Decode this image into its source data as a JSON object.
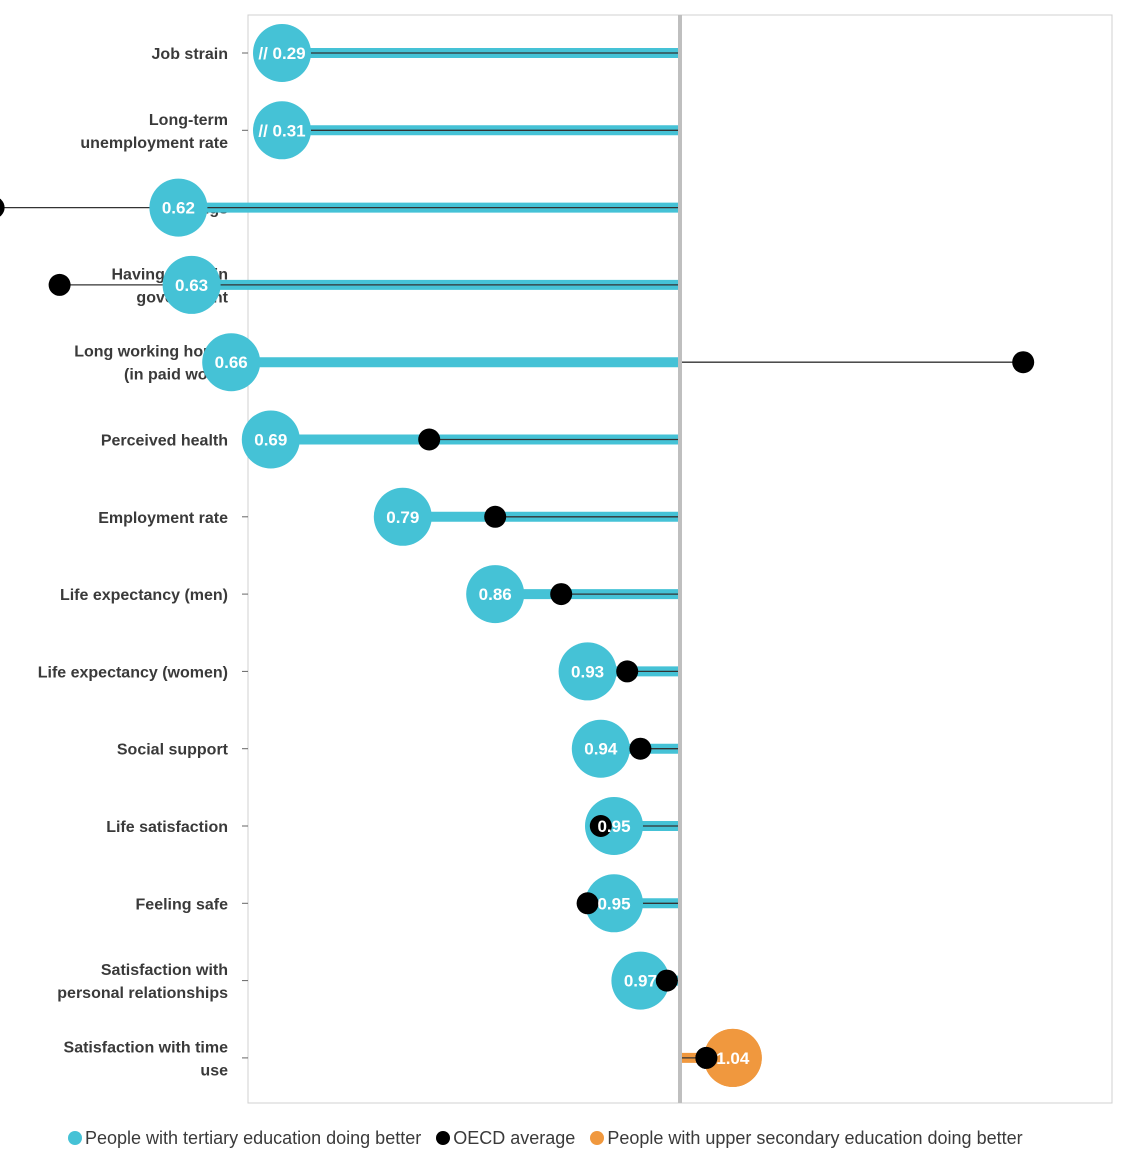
{
  "chart_data": {
    "type": "dot-bar",
    "reference_value": 1.0,
    "xlim": [
      0.25,
      1.25
    ],
    "colors": {
      "tertiary": "#45C2D6",
      "upper_secondary": "#F0983E",
      "oecd": "#000000",
      "reference_line": "#BFBFBF",
      "axis_frame": "#D0D0D0"
    },
    "categories": [
      "Job strain",
      "Long-term unemployment rate",
      "Earnings",
      "Having a say in government",
      "Long working hours (in paid work)",
      "Perceived health",
      "Employment rate",
      "Life expectancy (men)",
      "Life expectancy (women)",
      "Social support",
      "Life satisfaction",
      "Feeling safe",
      "Satisfaction with personal relationships",
      "Satisfaction with time use"
    ],
    "category_lines": [
      [
        "Job strain"
      ],
      [
        "Long-term",
        "unemployment rate"
      ],
      [
        "Earnings"
      ],
      [
        "Having a say in",
        "government"
      ],
      [
        "Long working hours",
        "(in paid work)"
      ],
      [
        "Perceived health"
      ],
      [
        "Employment rate"
      ],
      [
        "Life expectancy (men)"
      ],
      [
        "Life expectancy (women)"
      ],
      [
        "Social support"
      ],
      [
        "Life satisfaction"
      ],
      [
        "Feeling safe"
      ],
      [
        "Satisfaction with",
        "personal relationships"
      ],
      [
        "Satisfaction with time",
        "use"
      ]
    ],
    "values": [
      0.29,
      0.31,
      0.62,
      0.63,
      0.66,
      0.69,
      0.79,
      0.86,
      0.93,
      0.94,
      0.95,
      0.95,
      0.97,
      1.04
    ],
    "value_labels": [
      "// 0.29",
      "// 0.31",
      "0.62",
      "0.63",
      "0.66",
      "0.69",
      "0.79",
      "0.86",
      "0.93",
      "0.94",
      "0.95",
      "0.95",
      "0.97",
      "1.04"
    ],
    "truncated": [
      true,
      true,
      false,
      false,
      false,
      false,
      false,
      false,
      false,
      false,
      false,
      false,
      false,
      false
    ],
    "oecd_average": [
      null,
      null,
      0.48,
      0.53,
      1.26,
      0.81,
      0.86,
      0.91,
      0.96,
      0.97,
      0.94,
      0.93,
      0.99,
      1.02
    ],
    "series": [
      {
        "name": "People with tertiary education doing better",
        "color_key": "tertiary"
      },
      {
        "name": "OECD average",
        "color_key": "oecd"
      },
      {
        "name": "People with upper secondary education doing better",
        "color_key": "upper_secondary"
      }
    ],
    "legend_position": "bottom"
  }
}
